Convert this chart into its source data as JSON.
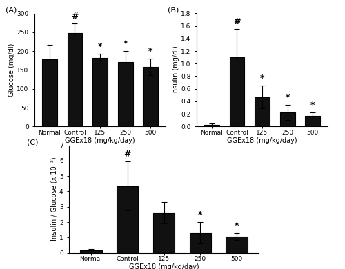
{
  "categories": [
    "Normal",
    "Control",
    "125",
    "250",
    "500"
  ],
  "xlabel": "GGEx18 (mg/kg/day)",
  "A_values": [
    178,
    248,
    181,
    170,
    158
  ],
  "A_errors": [
    38,
    25,
    12,
    30,
    22
  ],
  "A_ylabel": "Glucose (mg/dl)",
  "A_ylim": [
    0,
    300
  ],
  "A_yticks": [
    0,
    50,
    100,
    150,
    200,
    250,
    300
  ],
  "A_label": "(A)",
  "A_sig_hash": [
    false,
    true,
    false,
    false,
    false
  ],
  "A_sig_star": [
    false,
    false,
    true,
    true,
    true
  ],
  "B_values": [
    0.03,
    1.1,
    0.47,
    0.22,
    0.17
  ],
  "B_errors": [
    0.02,
    0.45,
    0.18,
    0.12,
    0.05
  ],
  "B_ylabel": "Insulin (mg/dl)",
  "B_ylim": [
    0,
    1.8
  ],
  "B_yticks": [
    0.0,
    0.2,
    0.4,
    0.6,
    0.8,
    1.0,
    1.2,
    1.4,
    1.6,
    1.8
  ],
  "B_label": "(B)",
  "B_sig_hash": [
    false,
    true,
    false,
    false,
    false
  ],
  "B_sig_star": [
    false,
    false,
    true,
    true,
    true
  ],
  "C_values": [
    0.17,
    4.35,
    2.6,
    1.3,
    1.05
  ],
  "C_errors": [
    0.1,
    1.6,
    0.7,
    0.7,
    0.22
  ],
  "C_ylabel": "Insulin / Glucose (x 10⁻³)",
  "C_ylim": [
    0,
    7
  ],
  "C_yticks": [
    0,
    1,
    2,
    3,
    4,
    5,
    6,
    7
  ],
  "C_label": "(C)",
  "C_sig_hash": [
    false,
    true,
    false,
    false,
    false
  ],
  "C_sig_star": [
    false,
    false,
    false,
    true,
    true
  ],
  "bar_color": "#111111",
  "bar_edgecolor": "#000000",
  "bar_width": 0.6,
  "capsize": 3,
  "fontsize_label": 7,
  "fontsize_tick": 6.5,
  "fontsize_panel": 8,
  "fontsize_sig": 9
}
